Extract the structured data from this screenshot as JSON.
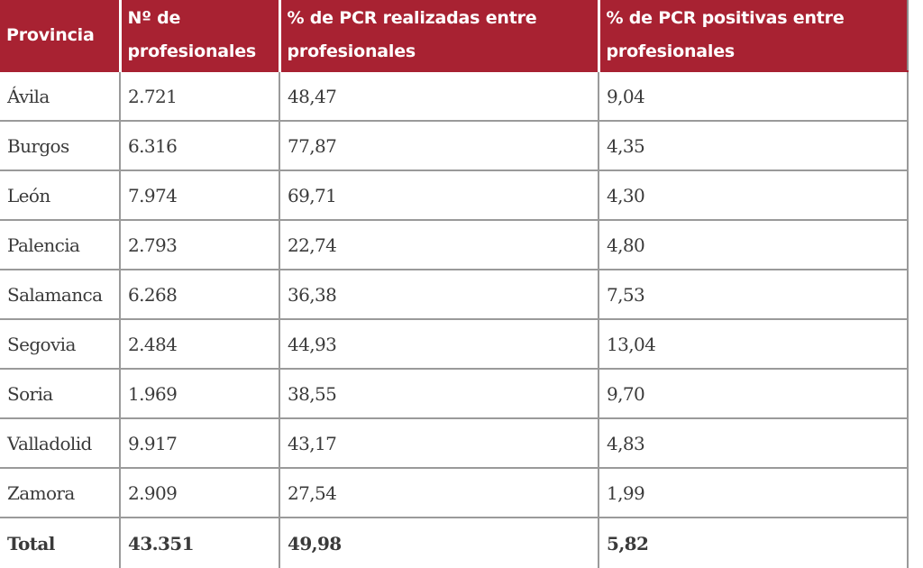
{
  "colors": {
    "header_background": "#a82232",
    "header_text": "#ffffff",
    "body_text": "#3a3a3a",
    "grid_lines": "#9a9a9a"
  },
  "table": {
    "headers": [
      "Provincia",
      "Nº de profesionales",
      "% de PCR realizadas entre profesionales",
      "% de PCR positivas entre profesionales"
    ],
    "rows": [
      [
        "Ávila",
        "2.721",
        "48,47",
        "9,04"
      ],
      [
        "Burgos",
        "6.316",
        "77,87",
        "4,35"
      ],
      [
        "León",
        "7.974",
        "69,71",
        "4,30"
      ],
      [
        "Palencia",
        "2.793",
        "22,74",
        "4,80"
      ],
      [
        "Salamanca",
        "6.268",
        "36,38",
        "7,53"
      ],
      [
        "Segovia",
        "2.484",
        "44,93",
        "13,04"
      ],
      [
        "Soria",
        "1.969",
        "38,55",
        "9,70"
      ],
      [
        "Valladolid",
        "9.917",
        "43,17",
        "4,83"
      ],
      [
        "Zamora",
        "2.909",
        "27,54",
        "1,99"
      ]
    ],
    "total": [
      "Total",
      "43.351",
      "49,98",
      "5,82"
    ]
  }
}
